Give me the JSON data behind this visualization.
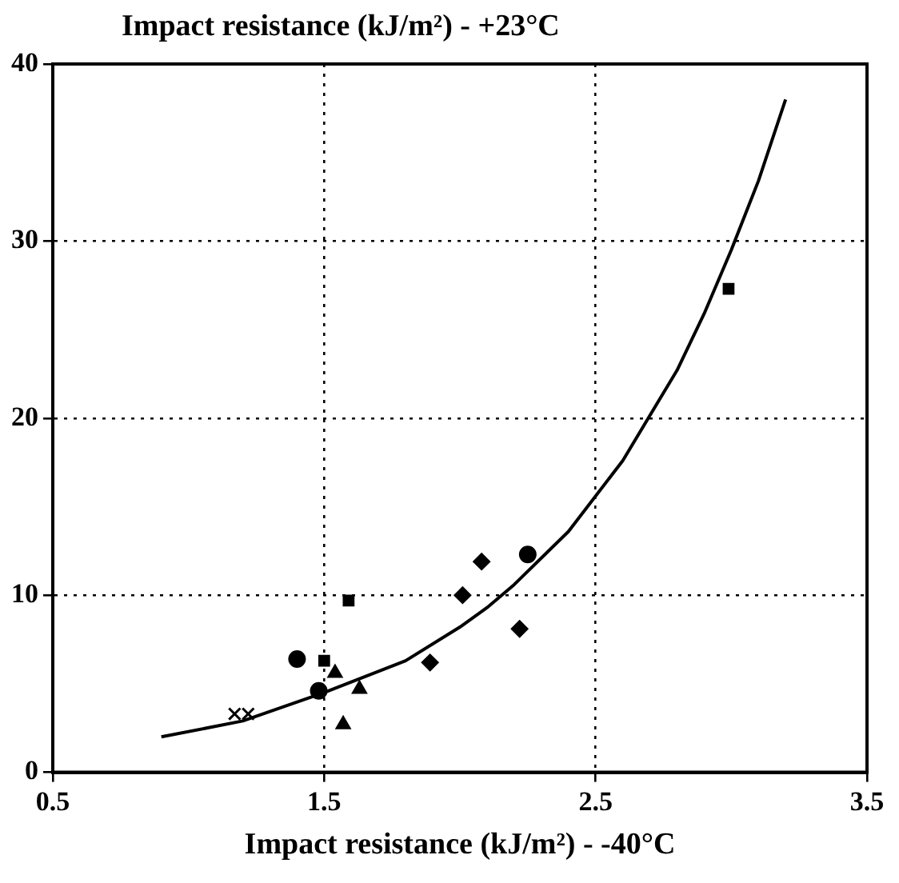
{
  "chart_data": {
    "type": "scatter",
    "ylabel": "Impact resistance (kJ/m²) - +23°C",
    "xlabel": "Impact resistance (kJ/m²) - -40°C",
    "xlim": [
      0.5,
      3.5
    ],
    "xticks": [
      0.5,
      1.5,
      2.5,
      3.5
    ],
    "ylim": [
      0,
      40
    ],
    "yticks": [
      0,
      10,
      20,
      30,
      40
    ],
    "grid": true,
    "line_style": "dotted",
    "series": [
      {
        "marker": "circle",
        "color": "#000000",
        "x": [
          1.4,
          1.48,
          2.25
        ],
        "values": [
          6.4,
          4.6,
          12.3
        ]
      },
      {
        "marker": "square",
        "color": "#000000",
        "x": [
          1.59,
          1.5,
          2.99
        ],
        "values": [
          9.7,
          6.3,
          27.3
        ]
      },
      {
        "marker": "triangle",
        "color": "#000000",
        "x": [
          1.54,
          1.63,
          1.57
        ],
        "values": [
          5.6,
          4.7,
          2.7
        ]
      },
      {
        "marker": "diamond",
        "color": "#000000",
        "x": [
          2.08,
          2.01,
          1.89,
          2.22
        ],
        "values": [
          11.9,
          10.0,
          6.2,
          8.1
        ]
      },
      {
        "marker": "cross",
        "color": "#000000",
        "x": [
          1.17,
          1.22
        ],
        "values": [
          3.3,
          3.3
        ]
      },
      {
        "type": "line",
        "marker": "none",
        "line_style": "solid",
        "color": "#000000",
        "x": [
          0.9,
          1.2,
          1.5,
          1.8,
          2.0,
          2.1,
          2.2,
          2.4,
          2.6,
          2.8,
          2.9,
          3.0,
          3.1,
          3.2
        ],
        "values": [
          2.0,
          2.9,
          4.5,
          6.3,
          8.2,
          9.3,
          10.6,
          13.6,
          17.6,
          22.7,
          25.9,
          29.5,
          33.4,
          38.0
        ]
      }
    ]
  }
}
